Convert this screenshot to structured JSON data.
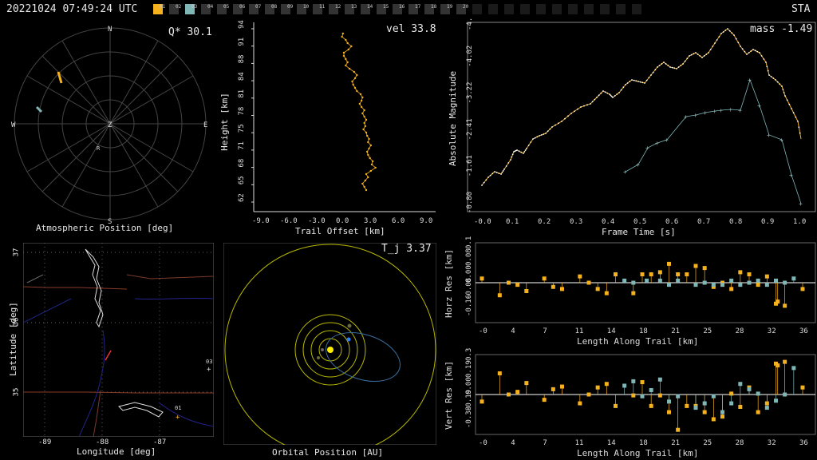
{
  "header": {
    "timestamp": "20221024 07:49:24 UTC",
    "station": "STA",
    "cameras": [
      {
        "num": "01",
        "color": "#f5b21e"
      },
      {
        "num": "02",
        "color": "#333333"
      },
      {
        "num": "03",
        "color": "#7fb7b7"
      },
      {
        "num": "04",
        "color": "#333333"
      },
      {
        "num": "05",
        "color": "#333333"
      },
      {
        "num": "06",
        "color": "#333333"
      },
      {
        "num": "07",
        "color": "#333333"
      },
      {
        "num": "08",
        "color": "#333333"
      },
      {
        "num": "09",
        "color": "#333333"
      },
      {
        "num": "10",
        "color": "#333333"
      },
      {
        "num": "11",
        "color": "#333333"
      },
      {
        "num": "12",
        "color": "#333333"
      },
      {
        "num": "13",
        "color": "#333333"
      },
      {
        "num": "14",
        "color": "#333333"
      },
      {
        "num": "15",
        "color": "#333333"
      },
      {
        "num": "16",
        "color": "#333333"
      },
      {
        "num": "17",
        "color": "#333333"
      },
      {
        "num": "18",
        "color": "#333333"
      },
      {
        "num": "19",
        "color": "#333333"
      },
      {
        "num": "20",
        "color": "#333333"
      },
      {
        "num": "",
        "color": "#1a1a1a"
      },
      {
        "num": "",
        "color": "#1a1a1a"
      },
      {
        "num": "",
        "color": "#1a1a1a"
      },
      {
        "num": "",
        "color": "#1a1a1a"
      },
      {
        "num": "",
        "color": "#1a1a1a"
      },
      {
        "num": "",
        "color": "#1a1a1a"
      },
      {
        "num": "",
        "color": "#1a1a1a"
      },
      {
        "num": "",
        "color": "#1a1a1a"
      },
      {
        "num": "",
        "color": "#1a1a1a"
      },
      {
        "num": "",
        "color": "#1a1a1a"
      },
      {
        "num": "",
        "color": "#1a1a1a"
      }
    ]
  },
  "panels": {
    "atmospheric": {
      "caption": "Atmospheric Position [deg]",
      "stat": "Q* 30.1",
      "compass": [
        "N",
        "E",
        "S",
        "W",
        "Z"
      ],
      "marker": "R"
    },
    "height": {
      "stat": "vel 33.8",
      "ylabel": "Height [km]",
      "xlabel": "Trail Offset [km]",
      "yticks": [
        "62",
        "65",
        "68",
        "71",
        "75",
        "78",
        "81",
        "84",
        "88",
        "91",
        "94"
      ],
      "xticks": [
        "-9.0",
        "-6.0",
        "-3.0",
        "0.0",
        "3.0",
        "6.0",
        "9.0"
      ]
    },
    "magnitude": {
      "stat": "mass -1.49",
      "ylabel": "Absolute Magnitude",
      "xlabel": "Frame Time [s]",
      "yticks": [
        "-4.83",
        "-4.02",
        "-3.22",
        "-2.41",
        "-1.61",
        "-0.80"
      ],
      "xticks": [
        "-0.0",
        "0.1",
        "0.2",
        "0.3",
        "0.4",
        "0.5",
        "0.6",
        "0.7",
        "0.8",
        "0.9",
        "1.0"
      ]
    },
    "map": {
      "ylabel": "Latitude [deg]",
      "xlabel": "Longitude [deg]",
      "yticks": [
        "37",
        "36",
        "35"
      ],
      "xticks": [
        "-89",
        "-88",
        "-87"
      ],
      "station_labels": [
        "03",
        "01"
      ]
    },
    "orbit": {
      "stat": "T_j 3.37",
      "caption": "Orbital Position [AU]"
    },
    "horz": {
      "ylabel": "Horz Res [km]",
      "xlabel": "Length Along Trail [km]",
      "yticks": [
        "0.16",
        "0.08",
        "0.00",
        "-0.08",
        "-0.16"
      ],
      "xticks": [
        "-0",
        "4",
        "7",
        "11",
        "14",
        "18",
        "21",
        "25",
        "28",
        "32",
        "36"
      ]
    },
    "vert": {
      "ylabel": "Vert Res [km]",
      "xlabel": "Length Along Trail [km]",
      "yticks": [
        "0.38",
        "0.19",
        "0.00",
        "-0.19",
        "-0.38"
      ],
      "xticks": [
        "-0",
        "4",
        "7",
        "11",
        "14",
        "18",
        "21",
        "25",
        "28",
        "32",
        "36"
      ]
    }
  },
  "colors": {
    "cam1": "#f5b21e",
    "cam3": "#7fb7b7",
    "grid": "#555555",
    "axis": "#dddddd"
  }
}
